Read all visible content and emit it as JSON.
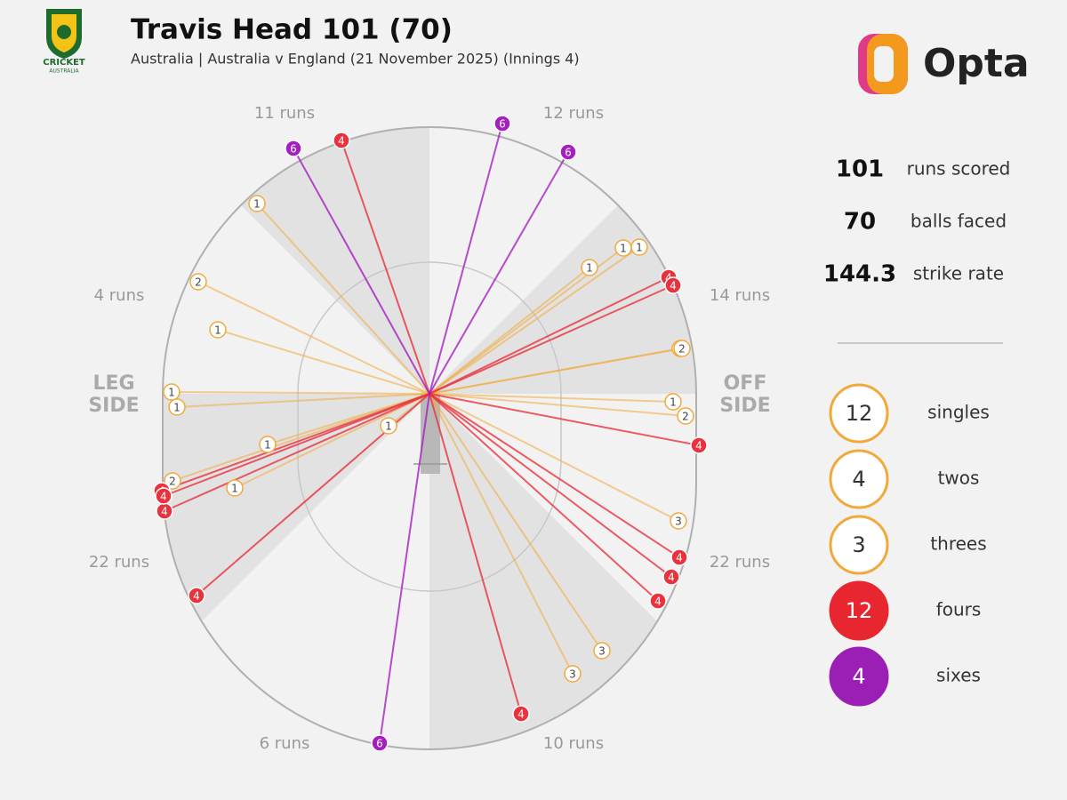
{
  "header": {
    "title": "Travis Head 101 (70)",
    "subtitle": "Australia | Australia v England (21 November 2025) (Innings 4)",
    "logo_text": [
      "CRICKET",
      "AUSTRALIA"
    ],
    "brand": "Opta"
  },
  "chart_data": {
    "type": "wagon-wheel",
    "side_labels": {
      "leg": [
        "LEG",
        "SIDE"
      ],
      "off": [
        "OFF",
        "SIDE"
      ]
    },
    "sectors": [
      {
        "value": 11,
        "label": "11 runs"
      },
      {
        "value": 12,
        "label": "12 runs"
      },
      {
        "value": 14,
        "label": "14 runs"
      },
      {
        "value": 22,
        "label": "22 runs"
      },
      {
        "value": 10,
        "label": "10 runs"
      },
      {
        "value": 6,
        "label": "6 runs"
      },
      {
        "value": 22,
        "label": "22 runs"
      },
      {
        "value": 4,
        "label": "4 runs"
      }
    ],
    "shots": [
      {
        "runs": 1,
        "x": -19.4,
        "y": 21.4,
        "color": "#f2a93b"
      },
      {
        "runs": 1,
        "x": -23.8,
        "y": 7.2,
        "color": "#f2a93b"
      },
      {
        "runs": 1,
        "x": -29.0,
        "y": 0.2,
        "color": "#f2a93b"
      },
      {
        "runs": 1,
        "x": -28.4,
        "y": -1.5,
        "color": "#f2a93b"
      },
      {
        "runs": 1,
        "x": -18.2,
        "y": -5.7,
        "color": "#f2a93b"
      },
      {
        "runs": 1,
        "x": -21.9,
        "y": -10.6,
        "color": "#f2a93b"
      },
      {
        "runs": 1,
        "x": -4.6,
        "y": -3.6,
        "color": "#f2a93b"
      },
      {
        "runs": 1,
        "x": 18.0,
        "y": 14.2,
        "color": "#f2a93b"
      },
      {
        "runs": 1,
        "x": 21.8,
        "y": 16.4,
        "color": "#f2a93b"
      },
      {
        "runs": 1,
        "x": 23.6,
        "y": 16.5,
        "color": "#f2a93b"
      },
      {
        "runs": 1,
        "x": 27.4,
        "y": -0.9,
        "color": "#f2a93b"
      },
      {
        "runs": 1,
        "x": 28.2,
        "y": 5.1,
        "color": "#f2a93b"
      },
      {
        "runs": 2,
        "x": -26.0,
        "y": 12.6,
        "color": "#f2a93b"
      },
      {
        "runs": 2,
        "x": -28.9,
        "y": -9.8,
        "color": "#f2a93b"
      },
      {
        "runs": 2,
        "x": 28.8,
        "y": -2.5,
        "color": "#f2a93b"
      },
      {
        "runs": 2,
        "x": 28.4,
        "y": 5.1,
        "color": "#f2a93b"
      },
      {
        "runs": 3,
        "x": 28.0,
        "y": -14.3,
        "color": "#f2a93b"
      },
      {
        "runs": 3,
        "x": 19.4,
        "y": -28.9,
        "color": "#f2a93b"
      },
      {
        "runs": 3,
        "x": 16.1,
        "y": -31.5,
        "color": "#f2a93b"
      },
      {
        "runs": 4,
        "x": -9.9,
        "y": 28.5,
        "color": "#e8333f"
      },
      {
        "runs": 4,
        "x": 26.9,
        "y": 13.1,
        "color": "#e8333f"
      },
      {
        "runs": 4,
        "x": 27.4,
        "y": 12.2,
        "color": "#e8333f"
      },
      {
        "runs": 4,
        "x": 30.3,
        "y": -5.8,
        "color": "#e8333f"
      },
      {
        "runs": 4,
        "x": 28.1,
        "y": -18.4,
        "color": "#e8333f"
      },
      {
        "runs": 4,
        "x": 27.2,
        "y": -20.6,
        "color": "#e8333f"
      },
      {
        "runs": 4,
        "x": 25.7,
        "y": -23.3,
        "color": "#e8333f"
      },
      {
        "runs": 4,
        "x": 10.3,
        "y": -36.0,
        "color": "#e8333f"
      },
      {
        "runs": 4,
        "x": -26.2,
        "y": -22.7,
        "color": "#e8333f"
      },
      {
        "runs": 4,
        "x": -29.8,
        "y": -13.2,
        "color": "#e8333f"
      },
      {
        "runs": 4,
        "x": -30.1,
        "y": -10.9,
        "color": "#e8333f"
      },
      {
        "runs": 4,
        "x": -29.9,
        "y": -11.5,
        "color": "#e8333f"
      },
      {
        "runs": 6,
        "x": -15.3,
        "y": 27.6,
        "color": "#a51fbf"
      },
      {
        "runs": 6,
        "x": 8.2,
        "y": 30.4,
        "color": "#a51fbf"
      },
      {
        "runs": 6,
        "x": 15.6,
        "y": 27.2,
        "color": "#a51fbf"
      },
      {
        "runs": 6,
        "x": -5.6,
        "y": -39.3,
        "color": "#a51fbf"
      }
    ],
    "stats": [
      {
        "value": 101,
        "label": "runs scored"
      },
      {
        "value": 70,
        "label": "balls faced"
      },
      {
        "value": 144.3,
        "label": "strike rate"
      }
    ],
    "legend": [
      {
        "count": 12,
        "label": "singles",
        "color": "#f2a93b",
        "filled": false
      },
      {
        "count": 4,
        "label": "twos",
        "color": "#f2a93b",
        "filled": false
      },
      {
        "count": 3,
        "label": "threes",
        "color": "#f2a93b",
        "filled": false
      },
      {
        "count": 12,
        "label": "fours",
        "color": "#e8262f",
        "filled": true
      },
      {
        "count": 4,
        "label": "sixes",
        "color": "#9b1fb5",
        "filled": true
      }
    ]
  }
}
